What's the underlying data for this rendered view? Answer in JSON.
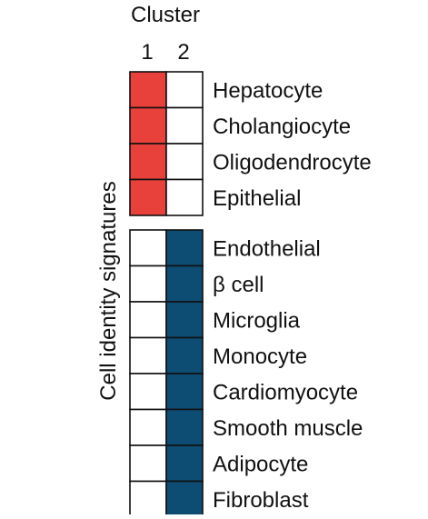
{
  "chart_data": {
    "type": "heatmap",
    "title": "Cluster",
    "columns": [
      "1",
      "2"
    ],
    "ylabel": "Cell identity signatures",
    "groups": [
      {
        "rows": [
          {
            "label": "Hepatocyte",
            "values": [
              1,
              0
            ]
          },
          {
            "label": "Cholangiocyte",
            "values": [
              1,
              0
            ]
          },
          {
            "label": "Oligodendrocyte",
            "values": [
              1,
              0
            ]
          },
          {
            "label": "Epithelial",
            "values": [
              1,
              0
            ]
          }
        ]
      },
      {
        "rows": [
          {
            "label": "Endothelial",
            "values": [
              0,
              1
            ]
          },
          {
            "label": "β cell",
            "values": [
              0,
              1
            ]
          },
          {
            "label": "Microglia",
            "values": [
              0,
              1
            ]
          },
          {
            "label": "Monocyte",
            "values": [
              0,
              1
            ]
          },
          {
            "label": "Cardiomyocyte",
            "values": [
              0,
              1
            ]
          },
          {
            "label": "Smooth muscle",
            "values": [
              0,
              1
            ]
          },
          {
            "label": "Adipocyte",
            "values": [
              0,
              1
            ]
          },
          {
            "label": "Fibroblast",
            "values": [
              0,
              1
            ]
          }
        ]
      }
    ],
    "colors": {
      "cluster_1": "#e8403a",
      "cluster_2": "#0e4d73",
      "empty": "#ffffff"
    }
  }
}
